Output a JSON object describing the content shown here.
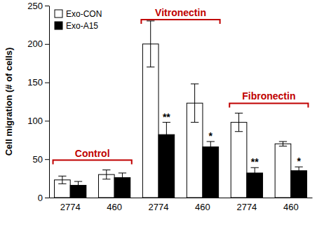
{
  "chart_data": {
    "type": "bar",
    "y_label": "Cell migration (# of cells)",
    "categories": [
      "2774",
      "460",
      "2774",
      "460",
      "2774",
      "460"
    ],
    "groups": [
      "Control",
      "Vitronectin",
      "Fibronectin"
    ],
    "series": [
      {
        "name": "Exo-CON",
        "color": "#ffffff",
        "values": [
          23,
          30,
          200,
          123,
          98,
          70
        ],
        "errors": [
          5,
          6,
          30,
          25,
          12,
          3
        ]
      },
      {
        "name": "Exo-A15",
        "color": "#000000",
        "values": [
          16,
          26,
          82,
          66,
          32,
          35
        ],
        "errors": [
          5,
          6,
          16,
          7,
          7,
          5
        ],
        "value_annotations": [
          null,
          null,
          "**",
          "*",
          "**",
          "*"
        ]
      }
    ],
    "ylim": [
      0,
      250
    ],
    "yticks": [
      0,
      50,
      100,
      150,
      200,
      250
    ],
    "legend": "upper left",
    "grid": false
  }
}
